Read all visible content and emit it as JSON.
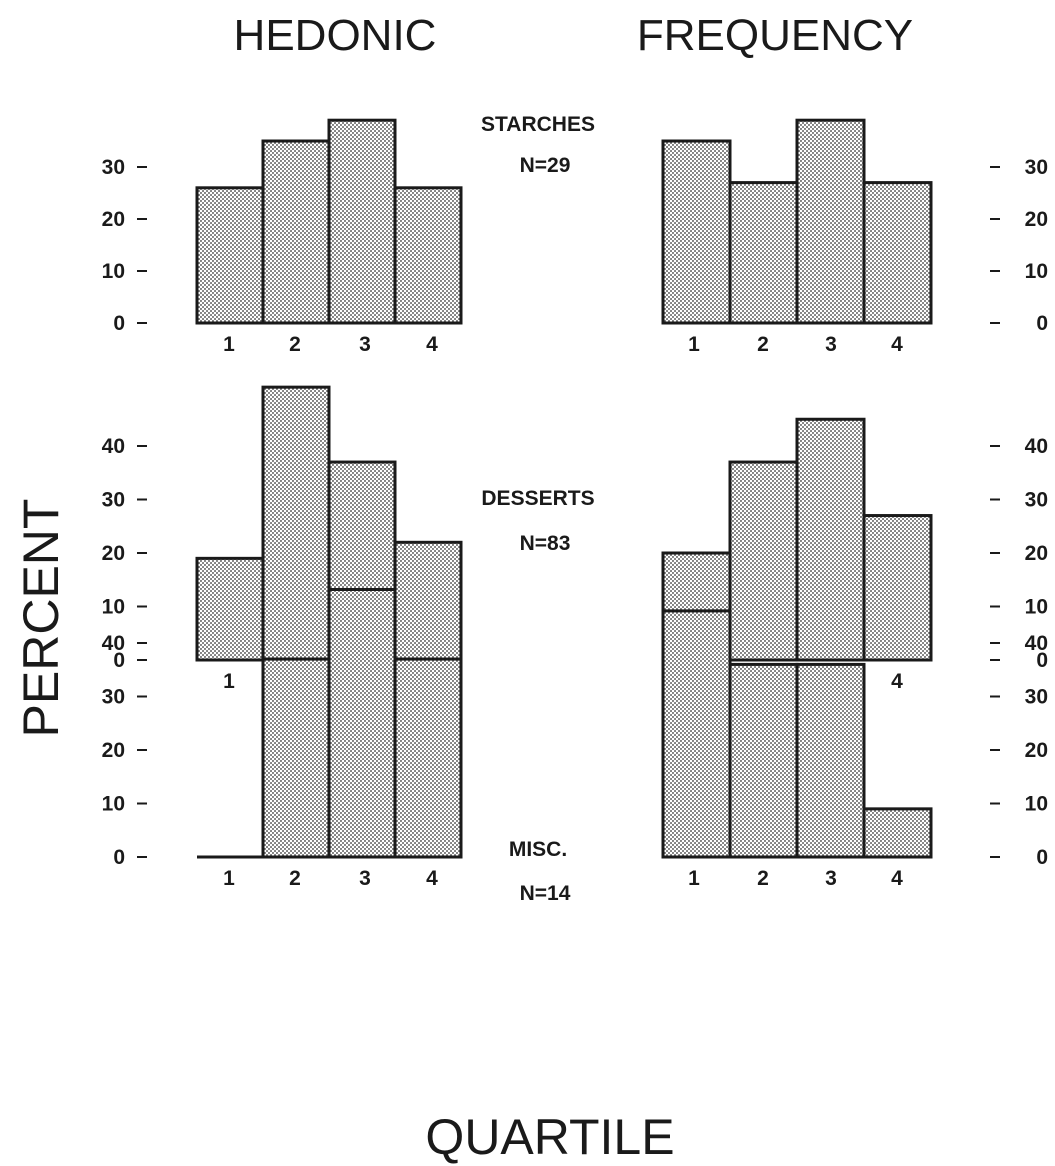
{
  "titles": {
    "left_column": "HEDONIC",
    "right_column": "FREQUENCY",
    "y_label": "PERCENT",
    "x_label": "QUARTILE"
  },
  "colors": {
    "ink": "#1a1a1a",
    "fill_pattern": "#8a8a8a",
    "background": "#ffffff"
  },
  "chart_data": [
    {
      "type": "bar",
      "group": "STARCHES",
      "n_label": "N=29",
      "column": "HEDONIC",
      "categories": [
        "1",
        "2",
        "3",
        "4"
      ],
      "values": [
        26,
        35,
        39,
        26
      ],
      "ylim": [
        0,
        40
      ],
      "yticks": [
        "0",
        "10",
        "20",
        "30"
      ],
      "y_axis_side": "left"
    },
    {
      "type": "bar",
      "group": "STARCHES",
      "n_label": "N=29",
      "column": "FREQUENCY",
      "categories": [
        "1",
        "2",
        "3",
        "4"
      ],
      "values": [
        35,
        27,
        39,
        27
      ],
      "ylim": [
        0,
        40
      ],
      "yticks": [
        "0",
        "10",
        "20",
        "30"
      ],
      "y_axis_side": "right"
    },
    {
      "type": "bar",
      "group": "DESSERTS",
      "n_label": "N=83",
      "column": "HEDONIC",
      "categories": [
        "1",
        "2",
        "3",
        "4"
      ],
      "values": [
        19,
        51,
        37,
        22
      ],
      "ylim": [
        0,
        51
      ],
      "yticks": [
        "0",
        "10",
        "20",
        "30",
        "40"
      ],
      "y_axis_side": "left"
    },
    {
      "type": "bar",
      "group": "DESSERTS",
      "n_label": "N=83",
      "column": "FREQUENCY",
      "categories": [
        "1",
        "2",
        "3",
        "4"
      ],
      "values": [
        20,
        37,
        45,
        27
      ],
      "ylim": [
        0,
        45
      ],
      "yticks": [
        "0",
        "10",
        "20",
        "30",
        "40"
      ],
      "y_axis_side": "right"
    },
    {
      "type": "bar",
      "group": "MISC.",
      "n_label": "N=14",
      "column": "HEDONIC",
      "categories": [
        "1",
        "2",
        "3",
        "4"
      ],
      "values": [
        0,
        37,
        50,
        37
      ],
      "ylim": [
        0,
        50
      ],
      "yticks": [
        "0",
        "10",
        "20",
        "30",
        "40"
      ],
      "y_axis_side": "left"
    },
    {
      "type": "bar",
      "group": "MISC.",
      "n_label": "N=14",
      "column": "FREQUENCY",
      "categories": [
        "1",
        "2",
        "3",
        "4"
      ],
      "values": [
        46,
        36,
        36,
        9
      ],
      "ylim": [
        0,
        46
      ],
      "yticks": [
        "0",
        "10",
        "20",
        "30",
        "40"
      ],
      "y_axis_side": "right"
    }
  ]
}
